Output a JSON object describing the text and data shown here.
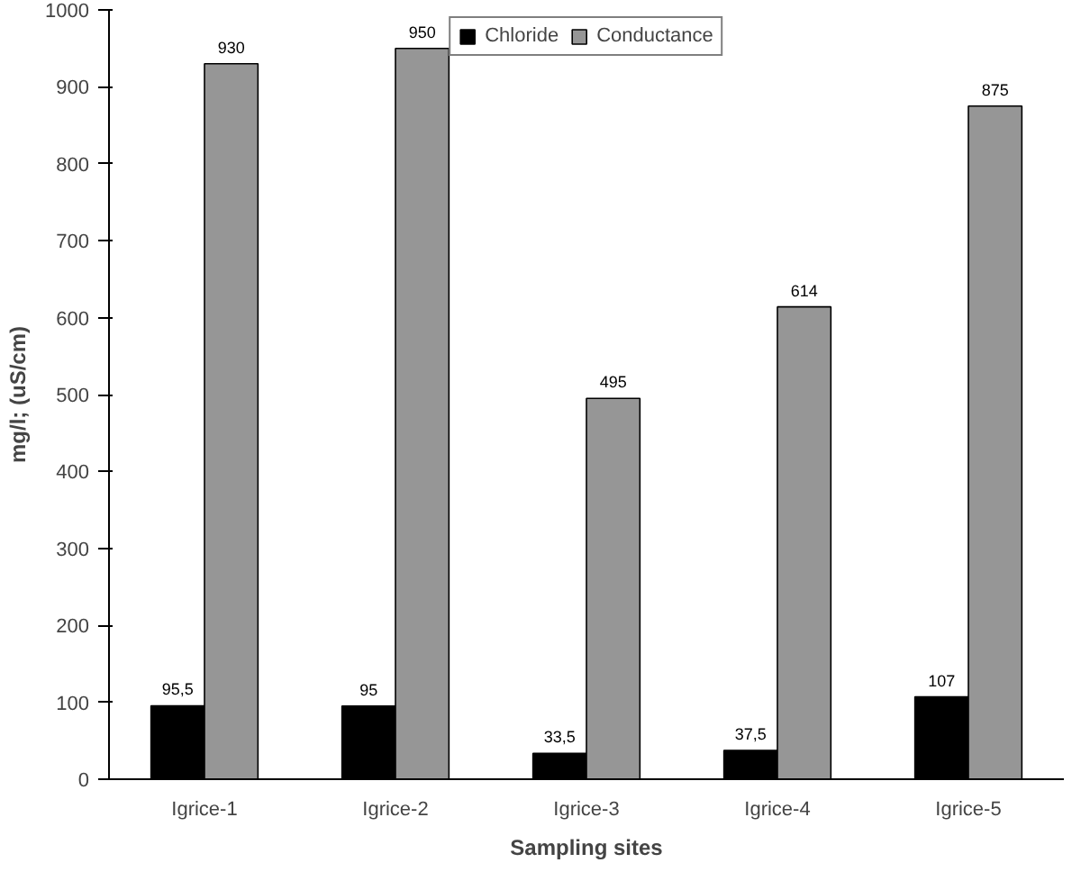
{
  "chart_data": {
    "type": "bar",
    "xlabel": "Sampling sites",
    "ylabel": "mg/l; (uS/cm)",
    "categories": [
      "Igrice-1",
      "Igrice-2",
      "Igrice-3",
      "Igrice-4",
      "Igrice-5"
    ],
    "series": [
      {
        "name": "Chloride",
        "color": "#000000",
        "values": [
          95.5,
          95,
          33.5,
          37.5,
          107
        ],
        "value_labels": [
          "95,5",
          "95",
          "33,5",
          "37,5",
          "107"
        ]
      },
      {
        "name": "Conductance",
        "color": "#969696",
        "values": [
          930,
          950,
          495,
          614,
          875
        ],
        "value_labels": [
          "930",
          "950",
          "495",
          "614",
          "875"
        ]
      }
    ],
    "ylim": [
      0,
      1000
    ],
    "yticks": [
      0,
      100,
      200,
      300,
      400,
      500,
      600,
      700,
      800,
      900,
      1000
    ],
    "grid": false,
    "legend": "top"
  }
}
